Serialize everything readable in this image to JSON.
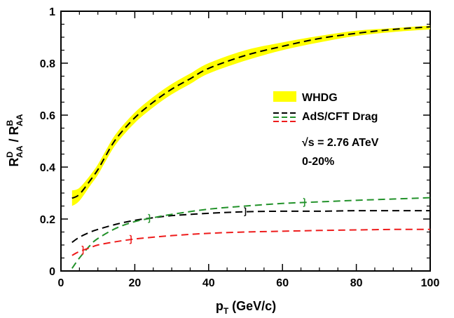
{
  "chart_data": {
    "type": "line",
    "title": "",
    "xlabel": {
      "main": "p",
      "sub": "T",
      "rest": " (GeV/c)"
    },
    "ylabel": {
      "p1": "R",
      "sup1": "D",
      "sub1": "AA",
      "slash": " / ",
      "p2": "R",
      "sup2": "B",
      "sub2": "AA"
    },
    "xlim": [
      0,
      100
    ],
    "ylim": [
      0,
      1
    ],
    "xticks": [
      "0",
      "20",
      "40",
      "60",
      "80",
      "100"
    ],
    "yticks": [
      "0",
      "0.2",
      "0.4",
      "0.6",
      "0.8",
      "1"
    ],
    "legend": {
      "entries": [
        {
          "label": "WHDG"
        },
        {
          "label": "AdS/CFT Drag"
        }
      ],
      "annotation_line1": "√s = 2.76 ATeV",
      "annotation_line2": "0-20%"
    },
    "band": {
      "name": "WHDG",
      "color": "#ffff00",
      "x": [
        3,
        5,
        8,
        10,
        12,
        15,
        20,
        25,
        30,
        35,
        40,
        50,
        60,
        70,
        80,
        90,
        100
      ],
      "lower": [
        0.25,
        0.27,
        0.33,
        0.37,
        0.42,
        0.49,
        0.57,
        0.63,
        0.68,
        0.72,
        0.76,
        0.81,
        0.85,
        0.88,
        0.905,
        0.92,
        0.93
      ],
      "upper": [
        0.31,
        0.32,
        0.37,
        0.41,
        0.46,
        0.53,
        0.61,
        0.67,
        0.72,
        0.76,
        0.8,
        0.85,
        0.88,
        0.905,
        0.925,
        0.935,
        0.945
      ]
    },
    "series": [
      {
        "name": "WHDG central",
        "color": "#000000",
        "x": [
          3,
          5,
          8,
          10,
          12,
          15,
          20,
          25,
          30,
          35,
          40,
          50,
          60,
          70,
          80,
          90,
          100
        ],
        "values": [
          0.28,
          0.295,
          0.35,
          0.39,
          0.44,
          0.51,
          0.59,
          0.65,
          0.7,
          0.74,
          0.78,
          0.83,
          0.865,
          0.895,
          0.915,
          0.93,
          0.94
        ]
      },
      {
        "name": "AdS/CFT Drag (black)",
        "color": "#000000",
        "x": [
          3,
          5,
          8,
          10,
          15,
          20,
          25,
          30,
          40,
          50,
          60,
          70,
          80,
          90,
          100
        ],
        "values": [
          0.11,
          0.13,
          0.15,
          0.16,
          0.18,
          0.195,
          0.205,
          0.213,
          0.222,
          0.228,
          0.23,
          0.23,
          0.232,
          0.232,
          0.232
        ],
        "marker_x": [
          50
        ]
      },
      {
        "name": "AdS/CFT Drag (green)",
        "color": "#22922a",
        "x": [
          3,
          5,
          8,
          10,
          15,
          20,
          25,
          30,
          40,
          50,
          60,
          70,
          80,
          90,
          100
        ],
        "values": [
          0.01,
          0.05,
          0.1,
          0.125,
          0.165,
          0.19,
          0.205,
          0.218,
          0.238,
          0.25,
          0.26,
          0.266,
          0.272,
          0.277,
          0.282
        ],
        "marker_x": [
          24,
          66
        ]
      },
      {
        "name": "AdS/CFT Drag (red)",
        "color": "#ee1c1c",
        "x": [
          3,
          5,
          8,
          10,
          15,
          20,
          25,
          30,
          40,
          50,
          60,
          70,
          80,
          90,
          100
        ],
        "values": [
          0.06,
          0.075,
          0.09,
          0.1,
          0.113,
          0.123,
          0.13,
          0.136,
          0.145,
          0.15,
          0.153,
          0.156,
          0.158,
          0.16,
          0.16
        ],
        "marker_x": [
          6,
          19
        ]
      }
    ]
  }
}
